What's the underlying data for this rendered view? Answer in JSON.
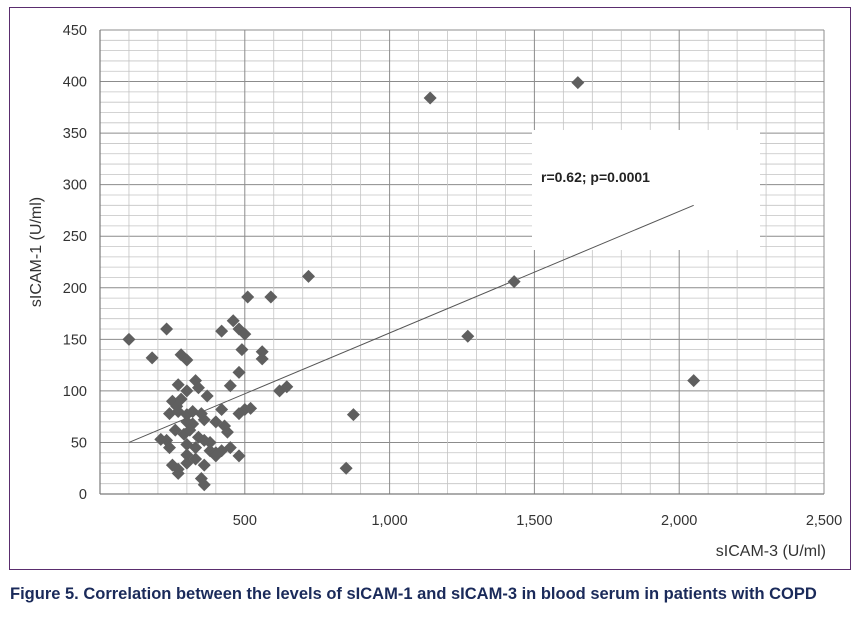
{
  "caption": "Figure 5. Correlation between the levels of sICAM-1 and sICAM-3 in blood serum in patients with COPD",
  "chart_data": {
    "type": "scatter",
    "xlabel": "sICAM-3 (U/ml)",
    "ylabel": "sICAM-1 (U/ml)",
    "xlim": [
      0,
      2500
    ],
    "ylim": [
      0,
      450
    ],
    "x_ticks": [
      500,
      1000,
      1500,
      2000,
      2500
    ],
    "x_tick_labels": [
      "500",
      "1,000",
      "1,500",
      "2,000",
      "2,500"
    ],
    "y_ticks": [
      0,
      50,
      100,
      150,
      200,
      250,
      300,
      350,
      400,
      450
    ],
    "y_tick_labels": [
      "0",
      "50",
      "100",
      "150",
      "200",
      "250",
      "300",
      "350",
      "400",
      "450"
    ],
    "grid": true,
    "annotation": "r=0.62; p=0.0001",
    "trendline": {
      "x": [
        100,
        2050
      ],
      "y": [
        50,
        280
      ]
    },
    "marker_color": "#5f5f5f",
    "points": [
      [
        100,
        150
      ],
      [
        180,
        132
      ],
      [
        230,
        160
      ],
      [
        1650,
        399
      ],
      [
        1140,
        384
      ],
      [
        720,
        211
      ],
      [
        590,
        191
      ],
      [
        510,
        191
      ],
      [
        1430,
        206
      ],
      [
        1270,
        153
      ],
      [
        2050,
        110
      ],
      [
        875,
        77
      ],
      [
        850,
        25
      ],
      [
        460,
        168
      ],
      [
        480,
        160
      ],
      [
        500,
        155
      ],
      [
        420,
        158
      ],
      [
        490,
        140
      ],
      [
        560,
        138
      ],
      [
        560,
        131
      ],
      [
        280,
        135
      ],
      [
        300,
        130
      ],
      [
        480,
        118
      ],
      [
        450,
        105
      ],
      [
        620,
        100
      ],
      [
        645,
        104
      ],
      [
        500,
        82
      ],
      [
        520,
        83
      ],
      [
        480,
        78
      ],
      [
        270,
        106
      ],
      [
        330,
        110
      ],
      [
        340,
        103
      ],
      [
        300,
        100
      ],
      [
        250,
        90
      ],
      [
        265,
        85
      ],
      [
        280,
        92
      ],
      [
        240,
        78
      ],
      [
        270,
        80
      ],
      [
        300,
        77
      ],
      [
        320,
        80
      ],
      [
        350,
        78
      ],
      [
        370,
        95
      ],
      [
        420,
        82
      ],
      [
        300,
        70
      ],
      [
        320,
        68
      ],
      [
        360,
        72
      ],
      [
        400,
        70
      ],
      [
        430,
        66
      ],
      [
        440,
        60
      ],
      [
        260,
        62
      ],
      [
        290,
        58
      ],
      [
        340,
        55
      ],
      [
        360,
        52
      ],
      [
        230,
        52
      ],
      [
        210,
        53
      ],
      [
        240,
        45
      ],
      [
        300,
        48
      ],
      [
        330,
        45
      ],
      [
        380,
        42
      ],
      [
        400,
        40
      ],
      [
        420,
        42
      ],
      [
        450,
        45
      ],
      [
        480,
        37
      ],
      [
        300,
        38
      ],
      [
        330,
        34
      ],
      [
        250,
        28
      ],
      [
        270,
        24
      ],
      [
        360,
        28
      ],
      [
        270,
        20
      ],
      [
        300,
        30
      ],
      [
        350,
        15
      ],
      [
        360,
        9
      ],
      [
        380,
        50
      ],
      [
        400,
        37
      ],
      [
        310,
        62
      ]
    ]
  }
}
